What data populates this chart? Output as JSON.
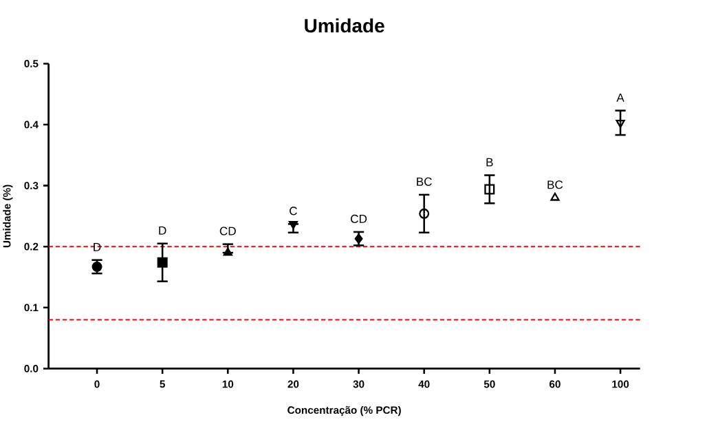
{
  "chart_data": {
    "type": "scatter",
    "title": "Umidade",
    "xlabel": "Concentração (% PCR)",
    "ylabel": "Umidade (%)",
    "categories": [
      "0",
      "5",
      "10",
      "20",
      "30",
      "40",
      "50",
      "60",
      "100"
    ],
    "ylim": [
      0,
      0.5
    ],
    "yticks": [
      {
        "value": 0,
        "label": "0.0"
      },
      {
        "value": 0.1,
        "label": "0.1"
      },
      {
        "value": 0.2,
        "label": "0.2"
      },
      {
        "value": 0.3,
        "label": "0.3"
      },
      {
        "value": 0.4,
        "label": "0.4"
      },
      {
        "value": 0.5,
        "label": "0.5"
      }
    ],
    "series": [
      {
        "color": "#000000",
        "marker": "circle",
        "values": [
          0.167,
          null,
          null,
          null,
          null,
          null,
          null,
          null,
          null
        ],
        "errors": [
          0.011,
          null,
          null,
          null,
          null,
          null,
          null,
          null,
          null
        ]
      },
      {
        "color": "#000000",
        "marker": "square",
        "values": [
          null,
          0.174,
          null,
          null,
          null,
          null,
          null,
          null,
          null
        ],
        "errors": [
          null,
          0.031,
          null,
          null,
          null,
          null,
          null,
          null,
          null
        ]
      },
      {
        "color": "#000000",
        "marker": "triangle",
        "values": [
          null,
          null,
          0.19,
          null,
          null,
          null,
          null,
          null,
          null
        ],
        "errors": [
          null,
          null,
          [
            0.19,
            0.204
          ],
          null,
          null,
          null,
          null,
          null,
          null
        ]
      },
      {
        "color": "#000000",
        "marker": "triangle-down",
        "values": [
          null,
          null,
          null,
          0.237,
          null,
          null,
          null,
          null,
          null
        ],
        "errors": [
          null,
          null,
          null,
          [
            0.223,
            0.237
          ],
          null,
          null,
          null,
          null,
          null
        ]
      },
      {
        "color": "#000000",
        "marker": "diamond",
        "values": [
          null,
          null,
          null,
          null,
          0.213,
          null,
          null,
          null,
          null
        ],
        "errors": [
          null,
          null,
          null,
          null,
          0.011,
          null,
          null,
          null,
          null
        ]
      },
      {
        "color": "#000000",
        "marker": "circle-open",
        "values": [
          null,
          null,
          null,
          null,
          null,
          0.254,
          null,
          null,
          null
        ],
        "errors": [
          null,
          null,
          null,
          null,
          null,
          0.031,
          null,
          null,
          null
        ]
      },
      {
        "color": "#000000",
        "marker": "square-open",
        "values": [
          null,
          null,
          null,
          null,
          null,
          null,
          0.294,
          null,
          null
        ],
        "errors": [
          null,
          null,
          null,
          null,
          null,
          null,
          0.023,
          null,
          null
        ]
      },
      {
        "color": "#000000",
        "marker": "triangle-open",
        "values": [
          null,
          null,
          null,
          null,
          null,
          null,
          null,
          0.28,
          null
        ]
      },
      {
        "color": "#000000",
        "marker": "triangle-down-open",
        "values": [
          null,
          null,
          null,
          null,
          null,
          null,
          null,
          null,
          0.403
        ],
        "errors": [
          null,
          null,
          null,
          null,
          null,
          null,
          null,
          null,
          0.02
        ]
      }
    ],
    "annotations": [
      "D",
      "D",
      "CD",
      "C",
      "CD",
      "BC",
      "B",
      "BC",
      "A"
    ],
    "ref_lines": [
      {
        "axis": "y",
        "value": 0.2,
        "color": "#ff0000",
        "line_style": "dashed"
      },
      {
        "axis": "y",
        "value": 0.08,
        "color": "#ff0000",
        "line_style": "dashed"
      }
    ],
    "grid": false
  }
}
